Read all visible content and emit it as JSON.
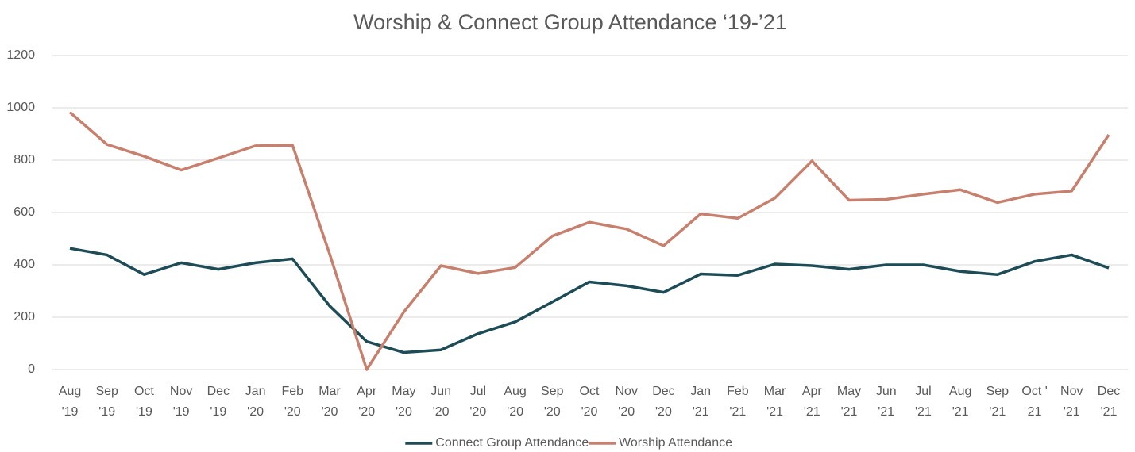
{
  "chart_data": {
    "type": "line",
    "title": "Worship & Connect Group Attendance ‘19-’21",
    "categories": [
      "Aug\n'19",
      "Sep\n'19",
      "Oct\n'19",
      "Nov\n'19",
      "Dec\n'19",
      "Jan\n'20",
      "Feb\n'20",
      "Mar\n'20",
      "Apr\n'20",
      "May\n'20",
      "Jun\n'20",
      "Jul\n'20",
      "Aug\n'20",
      "Sep\n'20",
      "Oct\n'20",
      "Nov\n'20",
      "Dec\n'20",
      "Jan\n'21",
      "Feb\n'21",
      "Mar\n'21",
      "Apr\n'21",
      "May\n'21",
      "Jun\n'21",
      "Jul\n'21",
      "Aug\n'21",
      "Sep\n'21",
      "Oct '\n21",
      "Nov\n'21",
      "Dec\n'21"
    ],
    "series": [
      {
        "name": "Connect Group Attendance",
        "color": "#1d4c56",
        "values": [
          463,
          438,
          363,
          408,
          383,
          408,
          423,
          243,
          107,
          65,
          75,
          137,
          182,
          258,
          335,
          320,
          295,
          365,
          360,
          403,
          397,
          383,
          400,
          400,
          375,
          363,
          413,
          438,
          388
        ]
      },
      {
        "name": "Worship Attendance",
        "color": "#c8806e",
        "values": [
          983,
          860,
          815,
          762,
          808,
          855,
          857,
          442,
          0,
          220,
          397,
          367,
          390,
          510,
          563,
          537,
          473,
          595,
          578,
          655,
          797,
          647,
          650,
          670,
          687,
          638,
          670,
          682,
          897
        ]
      }
    ],
    "ylim": [
      0,
      1200
    ],
    "yticks": [
      0,
      200,
      400,
      600,
      800,
      1000,
      1200
    ],
    "grid": true,
    "legend": "bottom"
  }
}
